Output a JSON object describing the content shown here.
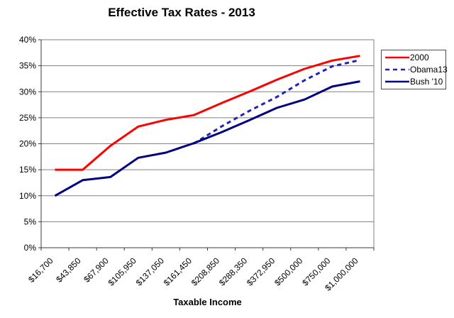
{
  "chart_data": {
    "type": "line",
    "title": "Effective Tax Rates - 2013",
    "xlabel": "Taxable Income",
    "ylabel": "",
    "categories": [
      "$16,700",
      "$43,850",
      "$67,900",
      "$105,950",
      "$137,050",
      "$161,450",
      "$208,850",
      "$288,350",
      "$372,950",
      "$500,000",
      "$750,000",
      "$1,000,000"
    ],
    "series": [
      {
        "name": "2000",
        "color": "#ff0000",
        "style": "solid",
        "values": [
          15,
          15,
          19.6,
          23.3,
          24.6,
          25.5,
          27.8,
          30.0,
          32.3,
          34.4,
          36.0,
          36.9
        ]
      },
      {
        "name": "Obama13",
        "color": "#2222bb",
        "style": "dashed",
        "values": [
          null,
          null,
          null,
          null,
          null,
          20.0,
          23.3,
          26.3,
          29.0,
          32.2,
          34.9,
          36.1
        ]
      },
      {
        "name": "Bush '10",
        "color": "#000080",
        "style": "solid",
        "values": [
          10,
          13.0,
          13.6,
          17.3,
          18.3,
          20.1,
          22.2,
          24.5,
          26.9,
          28.5,
          31.0,
          32.0
        ]
      }
    ],
    "y_axis": {
      "min": 0,
      "max": 40,
      "step": 5,
      "tick_format": "percent"
    },
    "grid": true,
    "legend_position": "right"
  }
}
